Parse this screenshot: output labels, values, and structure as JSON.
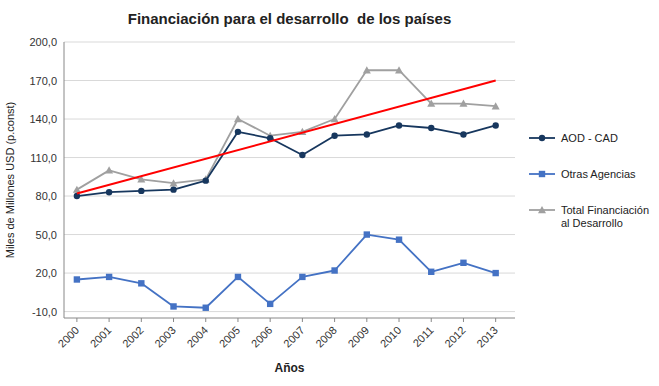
{
  "chart_data": {
    "type": "line",
    "title": "Financiación para el desarrollo  de los países",
    "x_label": "Años",
    "y_label": "Miles de Millones USD (p.const)",
    "x": [
      2000,
      2001,
      2002,
      2003,
      2004,
      2005,
      2006,
      2007,
      2008,
      2009,
      2010,
      2011,
      2012,
      2013
    ],
    "series": [
      {
        "name": "AOD - CAD",
        "color": "#17375E",
        "marker": "circle",
        "values": [
          80,
          83,
          84,
          85,
          92,
          130,
          125,
          112,
          127,
          128,
          135,
          133,
          128,
          135
        ]
      },
      {
        "name": "Otras Agencias",
        "color": "#4472C4",
        "marker": "square",
        "values": [
          15,
          17,
          12,
          -6,
          -7,
          17,
          -4,
          17,
          22,
          50,
          46,
          21,
          28,
          20
        ]
      },
      {
        "name": "Total Financiación\nal Desarrollo",
        "color": "#A0A0A0",
        "marker": "triangle",
        "values": [
          85,
          100,
          93,
          90,
          93,
          140,
          127,
          130,
          140,
          178,
          178,
          152,
          152,
          150
        ]
      }
    ],
    "trend_line": {
      "x": [
        2000,
        2013
      ],
      "values": [
        82,
        170
      ],
      "color": "#FF0000"
    },
    "xlim": [
      1999.6,
      2013.6
    ],
    "xticks": [
      2000,
      2001,
      2002,
      2003,
      2004,
      2005,
      2006,
      2007,
      2008,
      2009,
      2010,
      2011,
      2012,
      2013
    ],
    "ylim": [
      -15,
      200
    ],
    "yticks": [
      {
        "value": -10,
        "label": "-10,0"
      },
      {
        "value": 20,
        "label": "20,0"
      },
      {
        "value": 50,
        "label": "50,0"
      },
      {
        "value": 80,
        "label": "80,0"
      },
      {
        "value": 110,
        "label": "110,0"
      },
      {
        "value": 140,
        "label": "140,0"
      },
      {
        "value": 170,
        "label": "170,0"
      },
      {
        "value": 200,
        "label": "200,0"
      }
    ],
    "grid": true,
    "legend": "right"
  }
}
